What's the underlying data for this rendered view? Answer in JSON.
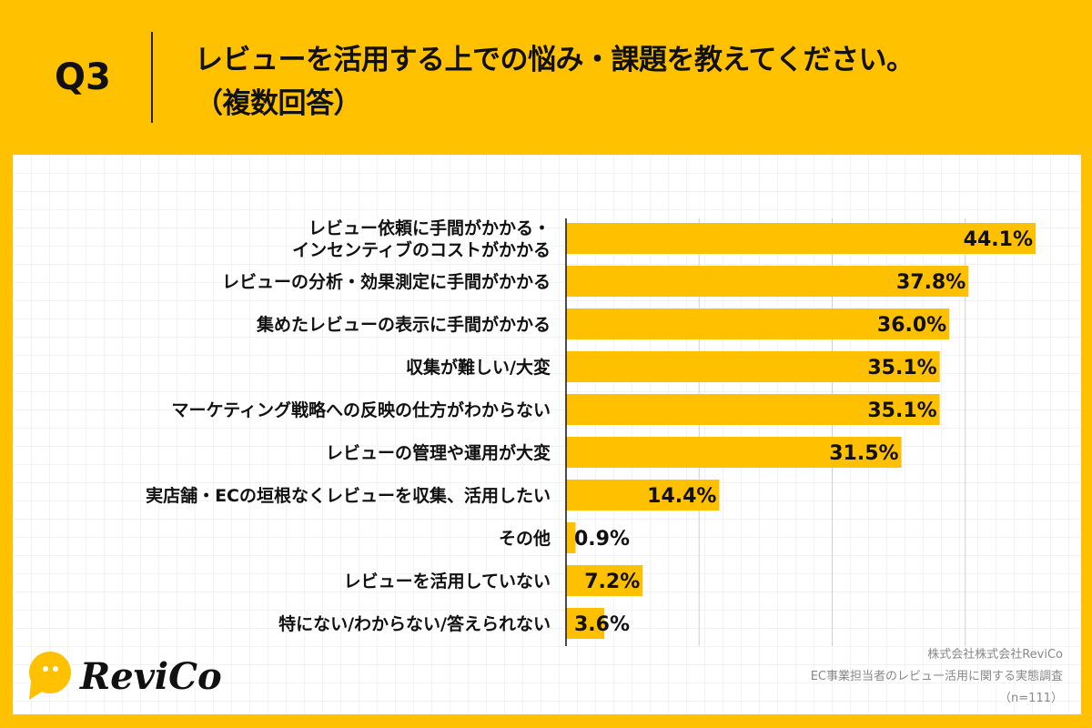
{
  "header": {
    "question_number": "Q3",
    "title_line1": "レビューを活用する上での悩み・課題を教えてください。",
    "title_line2": "（複数回答）"
  },
  "chart_data": {
    "type": "bar",
    "orientation": "horizontal",
    "categories": [
      [
        "レビュー依頼に手間がかかる・",
        "インセンティブのコストがかかる"
      ],
      [
        "レビューの分析・効果測定に手間がかかる"
      ],
      [
        "集めたレビューの表示に手間がかかる"
      ],
      [
        "収集が難しい/大変"
      ],
      [
        "マーケティング戦略への反映の仕方がわからない"
      ],
      [
        "レビューの管理や運用が大変"
      ],
      [
        "実店舗・ECの垣根なくレビューを収集、活用したい"
      ],
      [
        "その他"
      ],
      [
        "レビューを活用していない"
      ],
      [
        "特にない/わからない/答えられない"
      ]
    ],
    "values": [
      44.1,
      37.8,
      36.0,
      35.1,
      35.1,
      31.5,
      14.4,
      0.9,
      7.2,
      3.6
    ],
    "data_labels": [
      "44.1%",
      "37.8%",
      "36.0%",
      "35.1%",
      "35.1%",
      "31.5%",
      "14.4%",
      "0.9%",
      "7.2%",
      "3.6%"
    ],
    "unit": "%",
    "xlim": [
      0,
      50
    ],
    "gridlines": [
      12.5,
      25,
      37.5
    ],
    "grid": true,
    "bar_color": "#FFC000"
  },
  "footer": {
    "logo": "ReviCo",
    "credit_line1": "株式会社株式会社ReviCo",
    "credit_line2": "EC事業担当者のレビュー活用に関する実態調査",
    "credit_line3": "（n=111）"
  },
  "colors": {
    "background": "#FFC100",
    "bar": "#FFC000",
    "text": "#111111"
  }
}
